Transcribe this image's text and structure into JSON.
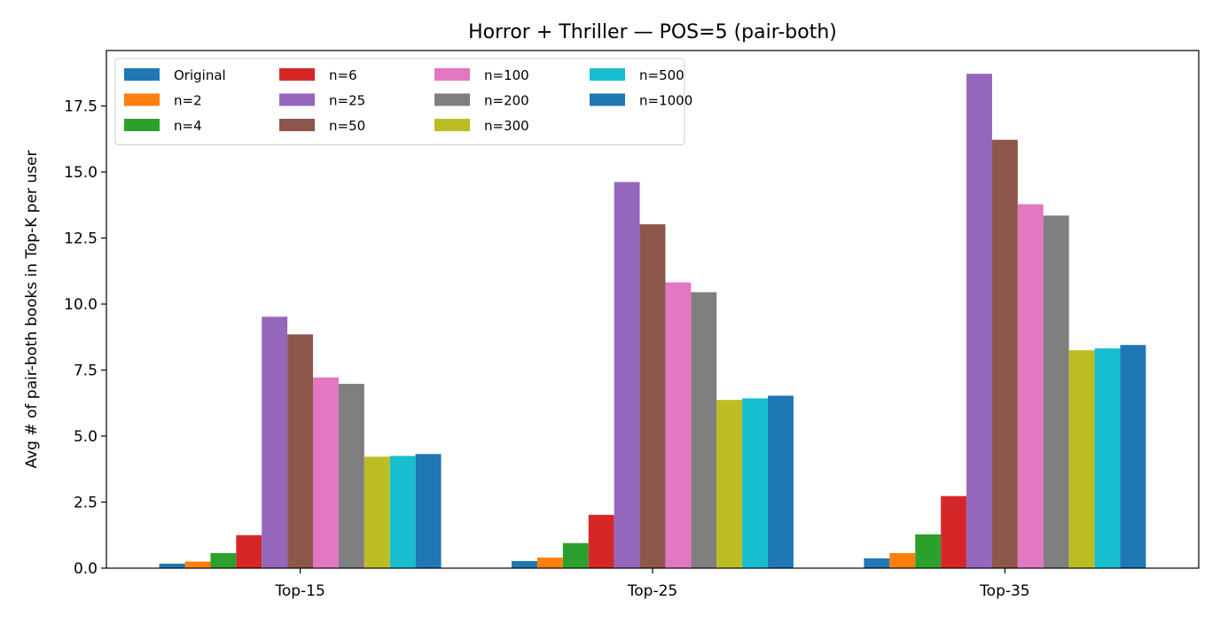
{
  "chart_data": {
    "type": "bar",
    "title": "Horror + Thriller — POS=5 (pair-both)",
    "xlabel": "",
    "ylabel": "Avg # of pair-both books in Top-K per user",
    "categories": [
      "Top-15",
      "Top-25",
      "Top-35"
    ],
    "ylim": [
      0,
      19.6
    ],
    "yticks": [
      "0.0",
      "2.5",
      "5.0",
      "7.5",
      "10.0",
      "12.5",
      "15.0",
      "17.5"
    ],
    "grid": false,
    "legend_position": "top-left",
    "legend_columns": 4,
    "series": [
      {
        "name": "Original",
        "color": "#1f77b4",
        "values": [
          0.17,
          0.27,
          0.37
        ]
      },
      {
        "name": "n=2",
        "color": "#ff7f0e",
        "values": [
          0.25,
          0.4,
          0.57
        ]
      },
      {
        "name": "n=4",
        "color": "#2ca02c",
        "values": [
          0.57,
          0.95,
          1.28
        ]
      },
      {
        "name": "n=6",
        "color": "#d62728",
        "values": [
          1.25,
          2.02,
          2.73
        ]
      },
      {
        "name": "n=25",
        "color": "#9467bd",
        "values": [
          9.52,
          14.62,
          18.72
        ]
      },
      {
        "name": "n=50",
        "color": "#8c564b",
        "values": [
          8.85,
          13.02,
          16.22
        ]
      },
      {
        "name": "n=100",
        "color": "#e377c2",
        "values": [
          7.22,
          10.82,
          13.78
        ]
      },
      {
        "name": "n=200",
        "color": "#7f7f7f",
        "values": [
          6.98,
          10.45,
          13.35
        ]
      },
      {
        "name": "n=300",
        "color": "#bcbd22",
        "values": [
          4.22,
          6.37,
          8.25
        ]
      },
      {
        "name": "n=500",
        "color": "#17becf",
        "values": [
          4.25,
          6.43,
          8.32
        ]
      },
      {
        "name": "n=1000",
        "color": "#1f77b4",
        "values": [
          4.32,
          6.53,
          8.45
        ]
      }
    ]
  }
}
